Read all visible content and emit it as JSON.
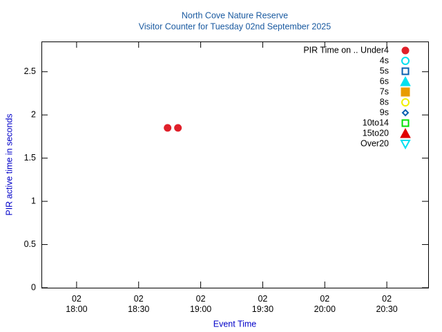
{
  "chart_data": {
    "type": "scatter",
    "title": "North Cove Nature Reserve",
    "subtitle": "Visitor Counter for Tuesday 02nd September 2025",
    "x_label": "Event Time",
    "y_label": "PIR active time in seconds",
    "xlim": [
      "17:43",
      "20:50"
    ],
    "ylim": [
      0,
      2.85
    ],
    "xticks": [
      {
        "value": "18:00",
        "label": "02\n18:00"
      },
      {
        "value": "18:30",
        "label": "02\n18:30"
      },
      {
        "value": "19:00",
        "label": "02\n19:00"
      },
      {
        "value": "19:30",
        "label": "02\n19:30"
      },
      {
        "value": "20:00",
        "label": "02\n20:00"
      },
      {
        "value": "20:30",
        "label": "02\n20:30"
      }
    ],
    "yticks": [
      0,
      0.5,
      1,
      1.5,
      2,
      2.5
    ],
    "grid": false,
    "legend": "top-right",
    "series": [
      {
        "name": "PIR Time on .. Under4",
        "color": "#e0202a",
        "marker": "circle-filled",
        "x": [
          "18:44",
          "18:49"
        ],
        "values": [
          1.85,
          1.85
        ]
      },
      {
        "name": "4s",
        "color": "#00e0f0",
        "marker": "circle-open",
        "x": [],
        "values": []
      },
      {
        "name": "5s",
        "color": "#0860b0",
        "marker": "square-open",
        "x": [],
        "values": []
      },
      {
        "name": "6s",
        "color": "#00e0f0",
        "marker": "triangle-filled",
        "x": [],
        "values": []
      },
      {
        "name": "7s",
        "color": "#e89c00",
        "marker": "square-filled",
        "x": [],
        "values": []
      },
      {
        "name": "8s",
        "color": "#f0f000",
        "marker": "circle-open",
        "x": [],
        "values": []
      },
      {
        "name": "9s",
        "color": "#0860b0",
        "marker": "diamond-open",
        "x": [],
        "values": []
      },
      {
        "name": "10to14",
        "color": "#00e000",
        "marker": "square-open",
        "x": [],
        "values": []
      },
      {
        "name": "15to20",
        "color": "#e00000",
        "marker": "triangle-filled",
        "x": [],
        "values": []
      },
      {
        "name": "Over20",
        "color": "#00e0f0",
        "marker": "triangle-down-open",
        "x": [],
        "values": []
      }
    ]
  }
}
